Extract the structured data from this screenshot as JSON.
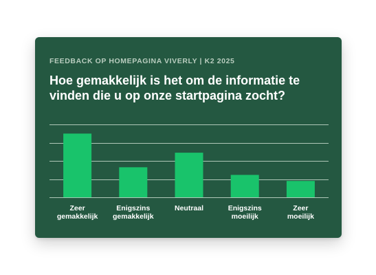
{
  "card": {
    "eyebrow": "FEEDBACK OP HOMEPAGINA VIVERLY | K2 2025",
    "question": "Hoe gemakkelijk is het om de informatie te vinden die u op onze startpagina zocht?",
    "background_color": "#245841"
  },
  "chart_data": {
    "type": "bar",
    "categories": [
      [
        "Zeer",
        "gemakkelijk"
      ],
      [
        "Enigszins",
        "gemakkelijk"
      ],
      [
        "Neutraal"
      ],
      [
        "Enigszins",
        "moeilijk"
      ],
      [
        "Zeer",
        "moeilijk"
      ]
    ],
    "values": [
      35,
      16.5,
      24.5,
      12.3,
      9
    ],
    "ylim": [
      0,
      40
    ],
    "grid": true,
    "bar_color": "#19c36b",
    "gridline_color": "#c9dccf"
  }
}
